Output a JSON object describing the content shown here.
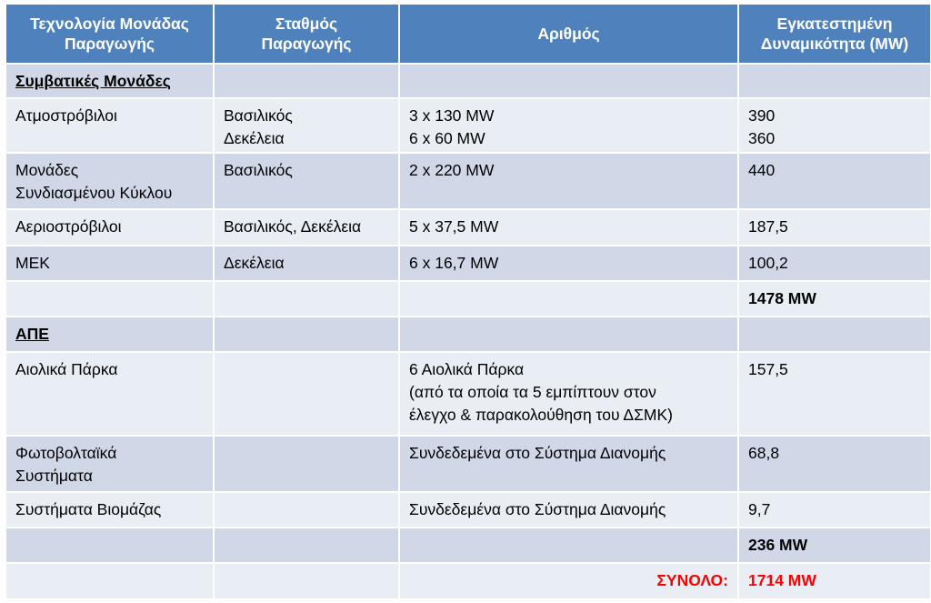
{
  "headers": {
    "technology": [
      "Τεχνολογία Μονάδας",
      "Παραγωγής"
    ],
    "station": [
      "Σταθμός",
      "Παραγωγής"
    ],
    "number": "Αριθμός",
    "capacity": [
      "Εγκατεστημένη",
      "Δυναμικότητα (MW)"
    ]
  },
  "conventional": {
    "section_label": "Συμβατικές Μονάδες",
    "rows": [
      {
        "tech": [
          "Ατμοστρόβιλοι"
        ],
        "station": [
          "Βασιλικός",
          "Δεκέλεια"
        ],
        "number": [
          "3 x 130 MW",
          "6 x 60 MW"
        ],
        "capacity": [
          "390",
          "360"
        ]
      },
      {
        "tech": [
          "Μονάδες",
          "Συνδιασμένου Κύκλου"
        ],
        "station": [
          "Βασιλικός"
        ],
        "number": [
          "2 x 220 MW"
        ],
        "capacity": [
          "440"
        ]
      },
      {
        "tech": [
          "Αεριοστρόβιλοι"
        ],
        "station": [
          "Βασιλικός, Δεκέλεια"
        ],
        "number": [
          "5 x 37,5 MW"
        ],
        "capacity": [
          "187,5"
        ]
      },
      {
        "tech": [
          "ΜΕΚ"
        ],
        "station": [
          "Δεκέλεια"
        ],
        "number": [
          "6 x 16,7 MW"
        ],
        "capacity": [
          "100,2"
        ]
      }
    ],
    "subtotal": "1478 MW"
  },
  "renewables": {
    "section_label": "ΑΠΕ",
    "rows": [
      {
        "tech": [
          "Αιολικά Πάρκα"
        ],
        "station": [],
        "number": [
          "6 Αιολικά Πάρκα",
          "(από τα οποία τα 5 εμπίπτουν στον",
          "έλεγχο & παρακολούθηση του ΔΣΜΚ)"
        ],
        "capacity": [
          "157,5"
        ]
      },
      {
        "tech": [
          "Φωτοβολταϊκά",
          "Συστήματα"
        ],
        "station": [],
        "number": [
          "Συνδεδεμένα στο Σύστημα Διανομής"
        ],
        "capacity": [
          "68,8"
        ]
      },
      {
        "tech": [
          "Συστήματα Βιομάζας"
        ],
        "station": [],
        "number": [
          "Συνδεδεμένα στο Σύστημα Διανομής"
        ],
        "capacity": [
          "9,7"
        ]
      }
    ],
    "subtotal": "236 MW"
  },
  "total": {
    "label": "ΣΥΝΟΛΟ:",
    "value": "1714 MW"
  },
  "colors": {
    "header": "#4f81bd",
    "row_dark": "#d0d8e8",
    "row_light": "#e9edf4",
    "total_label": "#ff0000"
  }
}
